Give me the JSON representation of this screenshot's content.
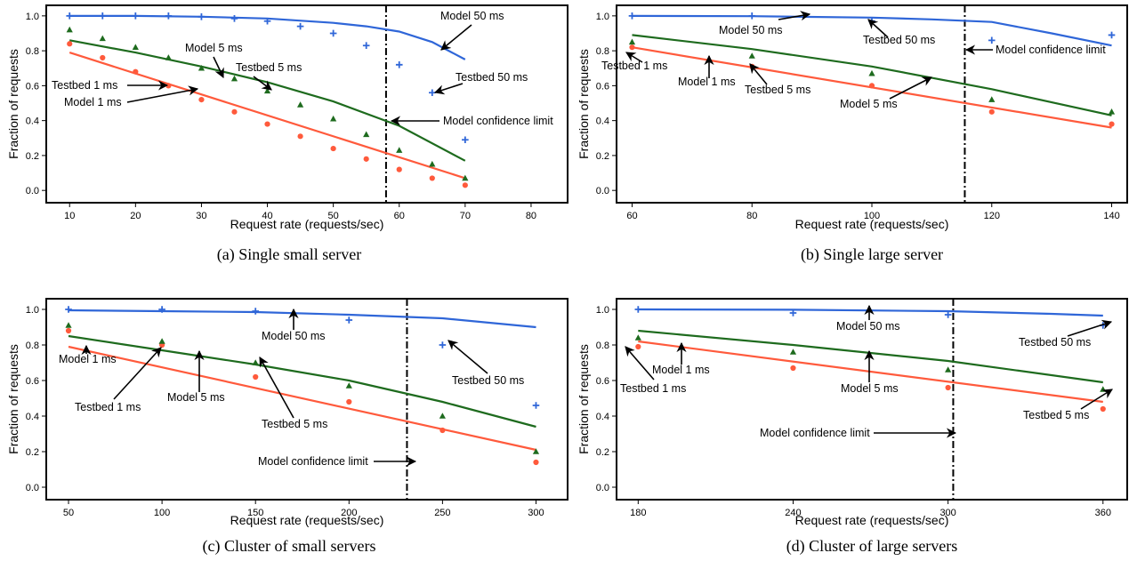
{
  "figure": {
    "colors": {
      "m1": "#ff5a3c",
      "m5": "#1e6b1e",
      "m50": "#2f66d8",
      "frame": "#000000"
    }
  },
  "chart_data": [
    {
      "type": "line",
      "caption": "(a) Single small server",
      "xlabel": "Request rate (requests/sec)",
      "ylabel": "Fraction of requests",
      "xlim": [
        7,
        85
      ],
      "ylim": [
        -0.05,
        1.04
      ],
      "xticks": [
        "10",
        "20",
        "30",
        "40",
        "50",
        "60",
        "70",
        "80"
      ],
      "yticks": [
        "0.0",
        "0.2",
        "0.4",
        "0.6",
        "0.8",
        "1.0"
      ],
      "confidence_limit": 58,
      "series": [
        {
          "name": "Model 1 ms",
          "kind": "line",
          "x": [
            10,
            70
          ],
          "y": [
            0.79,
            0.07
          ]
        },
        {
          "name": "Model 5 ms",
          "kind": "line",
          "x": [
            10,
            20,
            30,
            40,
            50,
            60,
            70
          ],
          "y": [
            0.86,
            0.79,
            0.71,
            0.62,
            0.51,
            0.37,
            0.17
          ]
        },
        {
          "name": "Model 50 ms",
          "kind": "line",
          "x": [
            10,
            20,
            30,
            40,
            50,
            55,
            60,
            65,
            70
          ],
          "y": [
            1.0,
            1.0,
            0.995,
            0.985,
            0.96,
            0.94,
            0.91,
            0.85,
            0.75
          ]
        },
        {
          "name": "Testbed 1 ms",
          "kind": "circle",
          "x": [
            10,
            15,
            20,
            25,
            30,
            35,
            40,
            45,
            50,
            55,
            60,
            65,
            70
          ],
          "y": [
            0.84,
            0.76,
            0.68,
            0.6,
            0.52,
            0.45,
            0.38,
            0.31,
            0.24,
            0.18,
            0.12,
            0.07,
            0.03
          ]
        },
        {
          "name": "Testbed 5 ms",
          "kind": "triangle",
          "x": [
            10,
            15,
            20,
            25,
            30,
            35,
            40,
            45,
            50,
            55,
            60,
            65,
            70
          ],
          "y": [
            0.92,
            0.87,
            0.82,
            0.76,
            0.7,
            0.64,
            0.57,
            0.49,
            0.41,
            0.32,
            0.23,
            0.15,
            0.07
          ]
        },
        {
          "name": "Testbed 50 ms",
          "kind": "plus",
          "x": [
            10,
            15,
            20,
            25,
            30,
            35,
            40,
            45,
            50,
            55,
            60,
            65,
            70
          ],
          "y": [
            1.0,
            1.0,
            1.0,
            1.0,
            0.995,
            0.985,
            0.97,
            0.94,
            0.9,
            0.83,
            0.72,
            0.56,
            0.29
          ]
        }
      ],
      "annotations": [
        "Model 50 ms",
        "Model 5 ms",
        "Testbed 5 ms",
        "Testbed 50 ms",
        "Testbed 1 ms",
        "Model 1 ms",
        "Model confidence limit"
      ]
    },
    {
      "type": "line",
      "caption": "(b) Single large server",
      "xlabel": "Request rate (requests/sec)",
      "ylabel": "Fraction of requests",
      "xlim": [
        58,
        142
      ],
      "ylim": [
        -0.05,
        1.04
      ],
      "xticks": [
        "60",
        "80",
        "100",
        "120",
        "140"
      ],
      "yticks": [
        "0.0",
        "0.2",
        "0.4",
        "0.6",
        "0.8",
        "1.0"
      ],
      "confidence_limit": 115.5,
      "series": [
        {
          "name": "Model 1 ms",
          "kind": "line",
          "x": [
            60,
            140
          ],
          "y": [
            0.82,
            0.36
          ]
        },
        {
          "name": "Model 5 ms",
          "kind": "line",
          "x": [
            60,
            80,
            100,
            120,
            140
          ],
          "y": [
            0.89,
            0.81,
            0.71,
            0.58,
            0.43
          ]
        },
        {
          "name": "Model 50 ms",
          "kind": "line",
          "x": [
            60,
            80,
            100,
            110,
            120,
            130,
            140
          ],
          "y": [
            1.0,
            0.998,
            0.99,
            0.98,
            0.965,
            0.9,
            0.83
          ]
        },
        {
          "name": "Testbed 1 ms",
          "kind": "circle",
          "x": [
            60,
            80,
            100,
            120,
            140
          ],
          "y": [
            0.82,
            0.71,
            0.6,
            0.45,
            0.38
          ]
        },
        {
          "name": "Testbed 5 ms",
          "kind": "triangle",
          "x": [
            60,
            80,
            100,
            120,
            140
          ],
          "y": [
            0.85,
            0.77,
            0.67,
            0.52,
            0.45
          ]
        },
        {
          "name": "Testbed 50 ms",
          "kind": "plus",
          "x": [
            60,
            80,
            100,
            120,
            140
          ],
          "y": [
            1.0,
            1.0,
            0.97,
            0.86,
            0.89
          ]
        }
      ],
      "annotations": [
        "Model 50 ms",
        "Testbed 50 ms",
        "Model confidence limit",
        "Testbed 1 ms",
        "Model 1 ms",
        "Testbed 5 ms",
        "Model 5 ms"
      ]
    },
    {
      "type": "line",
      "caption": "(c) Cluster of small servers",
      "xlabel": "Request rate (requests/sec)",
      "ylabel": "Fraction of requests",
      "xlim": [
        40,
        315
      ],
      "ylim": [
        -0.05,
        1.04
      ],
      "xticks": [
        "50",
        "100",
        "150",
        "200",
        "250",
        "300"
      ],
      "yticks": [
        "0.0",
        "0.2",
        "0.4",
        "0.6",
        "0.8",
        "1.0"
      ],
      "confidence_limit": 231,
      "series": [
        {
          "name": "Model 1 ms",
          "kind": "line",
          "x": [
            50,
            300
          ],
          "y": [
            0.79,
            0.21
          ]
        },
        {
          "name": "Model 5 ms",
          "kind": "line",
          "x": [
            50,
            100,
            150,
            200,
            250,
            300
          ],
          "y": [
            0.85,
            0.77,
            0.69,
            0.6,
            0.48,
            0.34
          ]
        },
        {
          "name": "Model 50 ms",
          "kind": "line",
          "x": [
            50,
            100,
            150,
            200,
            250,
            300
          ],
          "y": [
            0.995,
            0.99,
            0.985,
            0.97,
            0.95,
            0.9
          ]
        },
        {
          "name": "Testbed 1 ms",
          "kind": "circle",
          "x": [
            50,
            100,
            150,
            200,
            250,
            300
          ],
          "y": [
            0.88,
            0.8,
            0.62,
            0.48,
            0.32,
            0.14
          ]
        },
        {
          "name": "Testbed 5 ms",
          "kind": "triangle",
          "x": [
            50,
            100,
            150,
            200,
            250,
            300
          ],
          "y": [
            0.91,
            0.82,
            0.7,
            0.57,
            0.4,
            0.2
          ]
        },
        {
          "name": "Testbed 50 ms",
          "kind": "plus",
          "x": [
            50,
            100,
            150,
            200,
            250,
            300
          ],
          "y": [
            1.0,
            1.0,
            0.99,
            0.94,
            0.8,
            0.46
          ]
        }
      ],
      "annotations": [
        "Model 50 ms",
        "Model 1 ms",
        "Testbed 1 ms",
        "Model 5 ms",
        "Testbed 5 ms",
        "Testbed 50 ms",
        "Model confidence limit"
      ]
    },
    {
      "type": "line",
      "caption": "(d) Cluster of large servers",
      "xlabel": "Request rate (requests/sec)",
      "ylabel": "Fraction of requests",
      "xlim": [
        173,
        368
      ],
      "ylim": [
        -0.05,
        1.04
      ],
      "xticks": [
        "180",
        "240",
        "300",
        "360"
      ],
      "yticks": [
        "0.0",
        "0.2",
        "0.4",
        "0.6",
        "0.8",
        "1.0"
      ],
      "confidence_limit": 302,
      "series": [
        {
          "name": "Model 1 ms",
          "kind": "line",
          "x": [
            180,
            360
          ],
          "y": [
            0.82,
            0.48
          ]
        },
        {
          "name": "Model 5 ms",
          "kind": "line",
          "x": [
            180,
            240,
            300,
            360
          ],
          "y": [
            0.88,
            0.8,
            0.71,
            0.59
          ]
        },
        {
          "name": "Model 50 ms",
          "kind": "line",
          "x": [
            180,
            240,
            300,
            340,
            360
          ],
          "y": [
            1.0,
            0.998,
            0.99,
            0.975,
            0.965
          ]
        },
        {
          "name": "Testbed 1 ms",
          "kind": "circle",
          "x": [
            180,
            240,
            300,
            360
          ],
          "y": [
            0.79,
            0.67,
            0.56,
            0.44
          ]
        },
        {
          "name": "Testbed 5 ms",
          "kind": "triangle",
          "x": [
            180,
            240,
            300,
            360
          ],
          "y": [
            0.84,
            0.76,
            0.66,
            0.55
          ]
        },
        {
          "name": "Testbed 50 ms",
          "kind": "plus",
          "x": [
            180,
            240,
            300,
            360
          ],
          "y": [
            1.0,
            0.98,
            0.97,
            0.91
          ]
        }
      ],
      "annotations": [
        "Model 50 ms",
        "Testbed 50 ms",
        "Testbed 1 ms",
        "Model 1 ms",
        "Model 5 ms",
        "Testbed 5 ms",
        "Model confidence limit"
      ]
    }
  ]
}
